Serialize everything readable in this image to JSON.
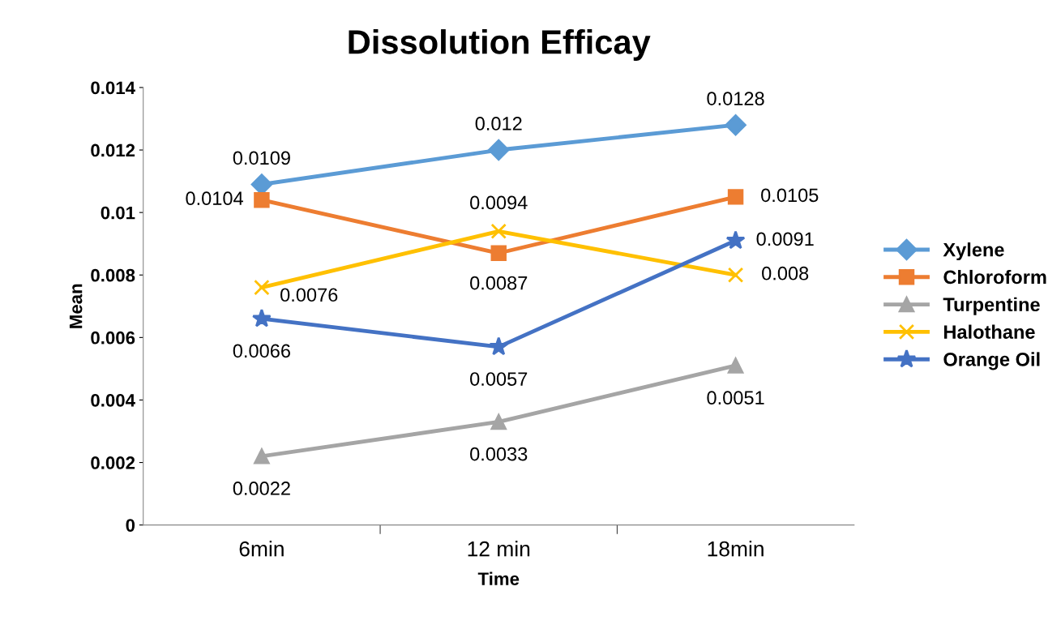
{
  "chart_data": {
    "type": "line",
    "title": "Dissolution Efficay",
    "xlabel": "Time",
    "ylabel": "Mean",
    "categories": [
      "6min",
      "12 min",
      "18min"
    ],
    "series": [
      {
        "name": "Xylene",
        "color": "#5b9bd5",
        "marker": "diamond",
        "values": [
          0.0109,
          0.012,
          0.0128
        ]
      },
      {
        "name": "Chloroform",
        "color": "#ed7d31",
        "marker": "square",
        "values": [
          0.0104,
          0.0087,
          0.0105
        ]
      },
      {
        "name": "Turpentine",
        "color": "#a5a5a5",
        "marker": "triangle",
        "values": [
          0.0022,
          0.0033,
          0.0051
        ]
      },
      {
        "name": "Halothane",
        "color": "#ffc000",
        "marker": "cross",
        "values": [
          0.0076,
          0.0094,
          0.008
        ]
      },
      {
        "name": "Orange Oil",
        "color": "#4472c4",
        "marker": "star",
        "values": [
          0.0066,
          0.0057,
          0.0091
        ]
      }
    ],
    "ylim": [
      0,
      0.014
    ],
    "yticks": [
      0,
      0.002,
      0.004,
      0.006,
      0.008,
      0.01,
      0.012,
      0.014
    ],
    "data_labels": true,
    "legend": "right",
    "grid": false,
    "line_style": "solid"
  }
}
